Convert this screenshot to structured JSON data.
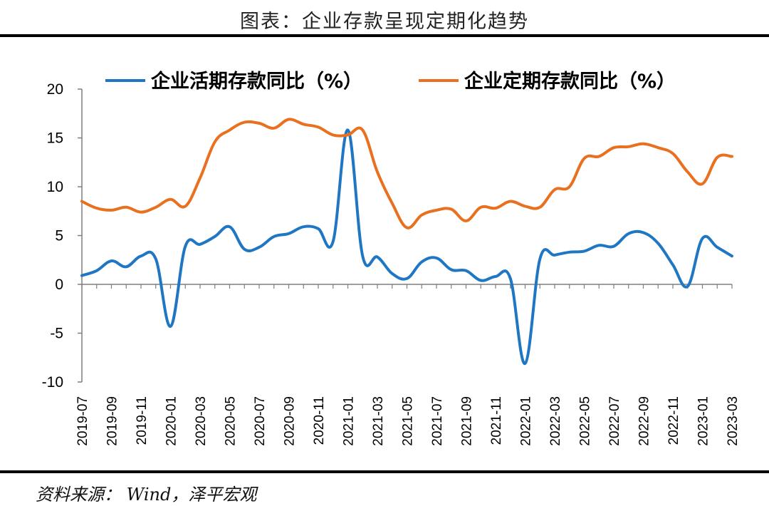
{
  "header": {
    "title": "图表：企业存款呈现定期化趋势"
  },
  "footer": {
    "source": "资料来源：  Wind，泽平宏观"
  },
  "colors": {
    "series1": "#1f77c4",
    "series2": "#e8701f",
    "axis": "#7f7f7f"
  },
  "chart_data": {
    "type": "line",
    "title": "",
    "xlabel": "",
    "ylabel": "",
    "ylim": [
      -10,
      20
    ],
    "yticks": [
      20,
      15,
      10,
      5,
      0,
      -5,
      -10
    ],
    "grid": false,
    "legend_position": "top",
    "xtick_labels": [
      "2019-07",
      "2019-09",
      "2019-11",
      "2020-01",
      "2020-03",
      "2020-05",
      "2020-07",
      "2020-09",
      "2020-11",
      "2021-01",
      "2021-03",
      "2021-05",
      "2021-07",
      "2021-09",
      "2021-11",
      "2022-01",
      "2022-03",
      "2022-05",
      "2022-07",
      "2022-09",
      "2022-11",
      "2023-01",
      "2023-03"
    ],
    "x": [
      "2019-07",
      "2019-08",
      "2019-09",
      "2019-10",
      "2019-11",
      "2019-12",
      "2020-01",
      "2020-02",
      "2020-03",
      "2020-04",
      "2020-05",
      "2020-06",
      "2020-07",
      "2020-08",
      "2020-09",
      "2020-10",
      "2020-11",
      "2020-12",
      "2021-01",
      "2021-02",
      "2021-03",
      "2021-04",
      "2021-05",
      "2021-06",
      "2021-07",
      "2021-08",
      "2021-09",
      "2021-10",
      "2021-11",
      "2021-12",
      "2022-01",
      "2022-02",
      "2022-03",
      "2022-04",
      "2022-05",
      "2022-06",
      "2022-07",
      "2022-08",
      "2022-09",
      "2022-10",
      "2022-11",
      "2022-12",
      "2023-01",
      "2023-02",
      "2023-03"
    ],
    "series": [
      {
        "name": "企业活期存款同比（%）",
        "values": [
          0.9,
          1.4,
          2.4,
          1.8,
          2.9,
          2.6,
          -4.3,
          3.9,
          4.1,
          4.9,
          5.9,
          3.6,
          3.8,
          4.9,
          5.2,
          5.9,
          5.7,
          4.4,
          15.8,
          2.9,
          2.8,
          1.1,
          0.6,
          2.3,
          2.7,
          1.5,
          1.4,
          0.4,
          0.8,
          0.6,
          -8.1,
          2.6,
          3.0,
          3.3,
          3.4,
          4.0,
          3.9,
          5.2,
          5.3,
          4.2,
          2.0,
          -0.2,
          4.7,
          3.8,
          2.9
        ]
      },
      {
        "name": "企业定期存款同比（%）",
        "values": [
          8.5,
          7.8,
          7.6,
          7.9,
          7.4,
          7.9,
          8.7,
          8.0,
          10.9,
          14.6,
          15.8,
          16.6,
          16.5,
          16.0,
          16.9,
          16.4,
          16.1,
          15.3,
          15.3,
          15.8,
          11.5,
          8.3,
          5.8,
          7.1,
          7.6,
          7.7,
          6.5,
          7.9,
          7.8,
          8.5,
          8.0,
          7.9,
          9.7,
          10.0,
          12.9,
          13.1,
          14.0,
          14.1,
          14.4,
          14.0,
          13.4,
          11.5,
          10.3,
          13.0,
          13.1
        ]
      }
    ]
  }
}
